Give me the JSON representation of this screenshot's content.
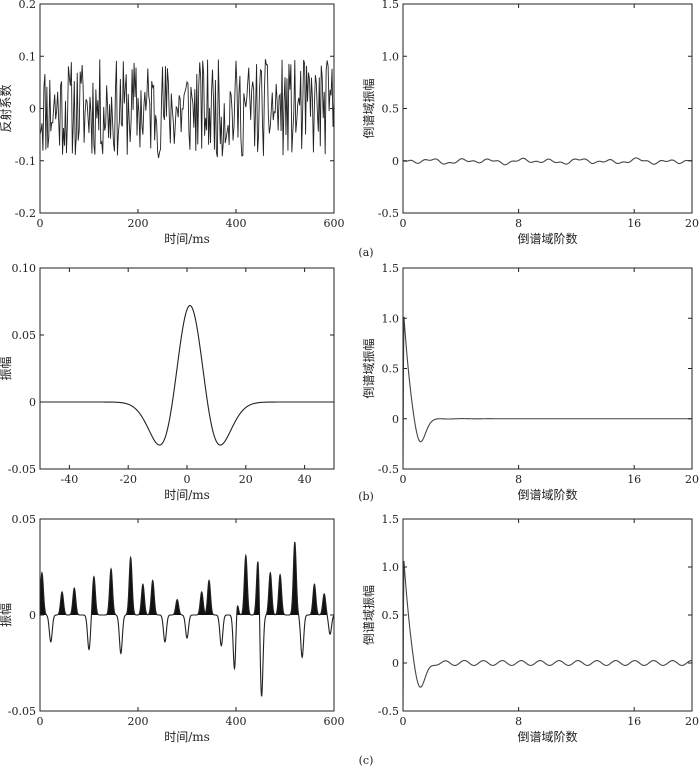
{
  "colors": {
    "axis": "#222222",
    "trace": "#222222",
    "fill": "#111111",
    "cepstrum": "#444444"
  },
  "panel_labels": [
    "(a)",
    "(b)",
    "(c)"
  ],
  "chart_data": [
    {
      "id": "a-left",
      "type": "line",
      "title": "",
      "xlabel": "时间/ms",
      "ylabel": "反射系数",
      "xlim": [
        0,
        600
      ],
      "ylim": [
        -0.2,
        0.2
      ],
      "xticks": [
        0,
        200,
        400,
        600
      ],
      "xtick_labels": [
        "0",
        "200",
        "400",
        "600"
      ],
      "yticks": [
        -0.2,
        -0.1,
        0,
        0.1,
        0.2
      ],
      "ytick_labels": [
        "-0.2",
        "-0.1",
        "0",
        "0.1",
        "0.2"
      ],
      "series": [
        {
          "name": "reflectivity",
          "kind": "random",
          "amplitude": 0.095,
          "count": 300,
          "seed": 11
        }
      ]
    },
    {
      "id": "a-right",
      "type": "line",
      "xlabel": "倒谱域阶数",
      "ylabel": "倒谱域振幅",
      "xlim": [
        0,
        20
      ],
      "ylim": [
        -0.5,
        1.5
      ],
      "xticks": [
        0,
        8,
        16,
        20
      ],
      "xtick_labels": [
        "0",
        "8",
        "16",
        "20"
      ],
      "yticks": [
        -0.5,
        0,
        0.5,
        1.0,
        1.5
      ],
      "ytick_labels": [
        "-0.5",
        "0",
        "0.5",
        "1.0",
        "1.5"
      ],
      "series": [
        {
          "name": "cepstrum",
          "kind": "ripple",
          "amplitude": 0.02,
          "seed": 3
        }
      ]
    },
    {
      "id": "b-left",
      "type": "line",
      "xlabel": "时间/ms",
      "ylabel": "振幅",
      "xlim": [
        -50,
        50
      ],
      "ylim": [
        -0.05,
        0.1
      ],
      "xticks": [
        -40,
        -20,
        0,
        20,
        40
      ],
      "xtick_labels": [
        "-40",
        "-20",
        "0",
        "20",
        "40"
      ],
      "yticks": [
        -0.05,
        0,
        0.05,
        0.1
      ],
      "ytick_labels": [
        "-0.05",
        "0",
        "0.05",
        "0.10"
      ],
      "series": [
        {
          "name": "wavelet",
          "kind": "ricker",
          "peak": 0.072,
          "center": 1,
          "trough": -0.033,
          "trough_offset": 13
        }
      ]
    },
    {
      "id": "b-right",
      "type": "line",
      "xlabel": "倒谱域阶数",
      "ylabel": "倒谱域振幅",
      "xlim": [
        0,
        20
      ],
      "ylim": [
        -0.5,
        1.5
      ],
      "xticks": [
        0,
        8,
        16,
        20
      ],
      "xtick_labels": [
        "0",
        "8",
        "16",
        "20"
      ],
      "yticks": [
        -0.5,
        0,
        0.5,
        1.0,
        1.5
      ],
      "ytick_labels": [
        "-0.5",
        "0",
        "0.5",
        "1.0",
        "1.5"
      ],
      "series": [
        {
          "name": "cepstrum",
          "kind": "decay",
          "peak": 1.05,
          "dip": -0.22,
          "ripple": 0.0
        }
      ]
    },
    {
      "id": "c-left",
      "type": "area",
      "xlabel": "时间/ms",
      "ylabel": "振幅",
      "xlim": [
        0,
        600
      ],
      "ylim": [
        -0.05,
        0.05
      ],
      "xticks": [
        0,
        200,
        400,
        600
      ],
      "xtick_labels": [
        "0",
        "200",
        "400",
        "600"
      ],
      "yticks": [
        -0.05,
        0,
        0.05
      ],
      "ytick_labels": [
        "-0.05",
        "0",
        "0.05"
      ],
      "series": [
        {
          "name": "seismic trace",
          "kind": "spikes",
          "fill_positive": true,
          "spikes": [
            [
              4,
              0.022
            ],
            [
              22,
              -0.014
            ],
            [
              45,
              0.012
            ],
            [
              70,
              0.014
            ],
            [
              100,
              -0.018
            ],
            [
              110,
              0.02
            ],
            [
              145,
              0.024
            ],
            [
              165,
              -0.02
            ],
            [
              185,
              0.03
            ],
            [
              210,
              0.016
            ],
            [
              230,
              0.018
            ],
            [
              255,
              -0.014
            ],
            [
              280,
              0.008
            ],
            [
              300,
              -0.012
            ],
            [
              330,
              0.012
            ],
            [
              345,
              0.018
            ],
            [
              370,
              -0.016
            ],
            [
              400,
              0.026
            ],
            [
              398,
              -0.046
            ],
            [
              420,
              0.031
            ],
            [
              445,
              0.03
            ],
            [
              452,
              -0.044
            ],
            [
              470,
              0.022
            ],
            [
              490,
              0.021
            ],
            [
              520,
              0.038
            ],
            [
              535,
              -0.022
            ],
            [
              560,
              0.016
            ],
            [
              580,
              0.011
            ],
            [
              592,
              -0.01
            ]
          ]
        }
      ]
    },
    {
      "id": "c-right",
      "type": "line",
      "xlabel": "倒谱域阶数",
      "ylabel": "倒谱域振幅",
      "xlim": [
        0,
        20
      ],
      "ylim": [
        -0.5,
        1.5
      ],
      "xticks": [
        0,
        8,
        16,
        20
      ],
      "xtick_labels": [
        "0",
        "8",
        "16",
        "20"
      ],
      "yticks": [
        -0.5,
        0,
        0.5,
        1.0,
        1.5
      ],
      "ytick_labels": [
        "-0.5",
        "0",
        "0.5",
        "1.0",
        "1.5"
      ],
      "series": [
        {
          "name": "cepstrum",
          "kind": "decay",
          "peak": 1.1,
          "dip": -0.24,
          "ripple": 0.025
        }
      ]
    }
  ]
}
